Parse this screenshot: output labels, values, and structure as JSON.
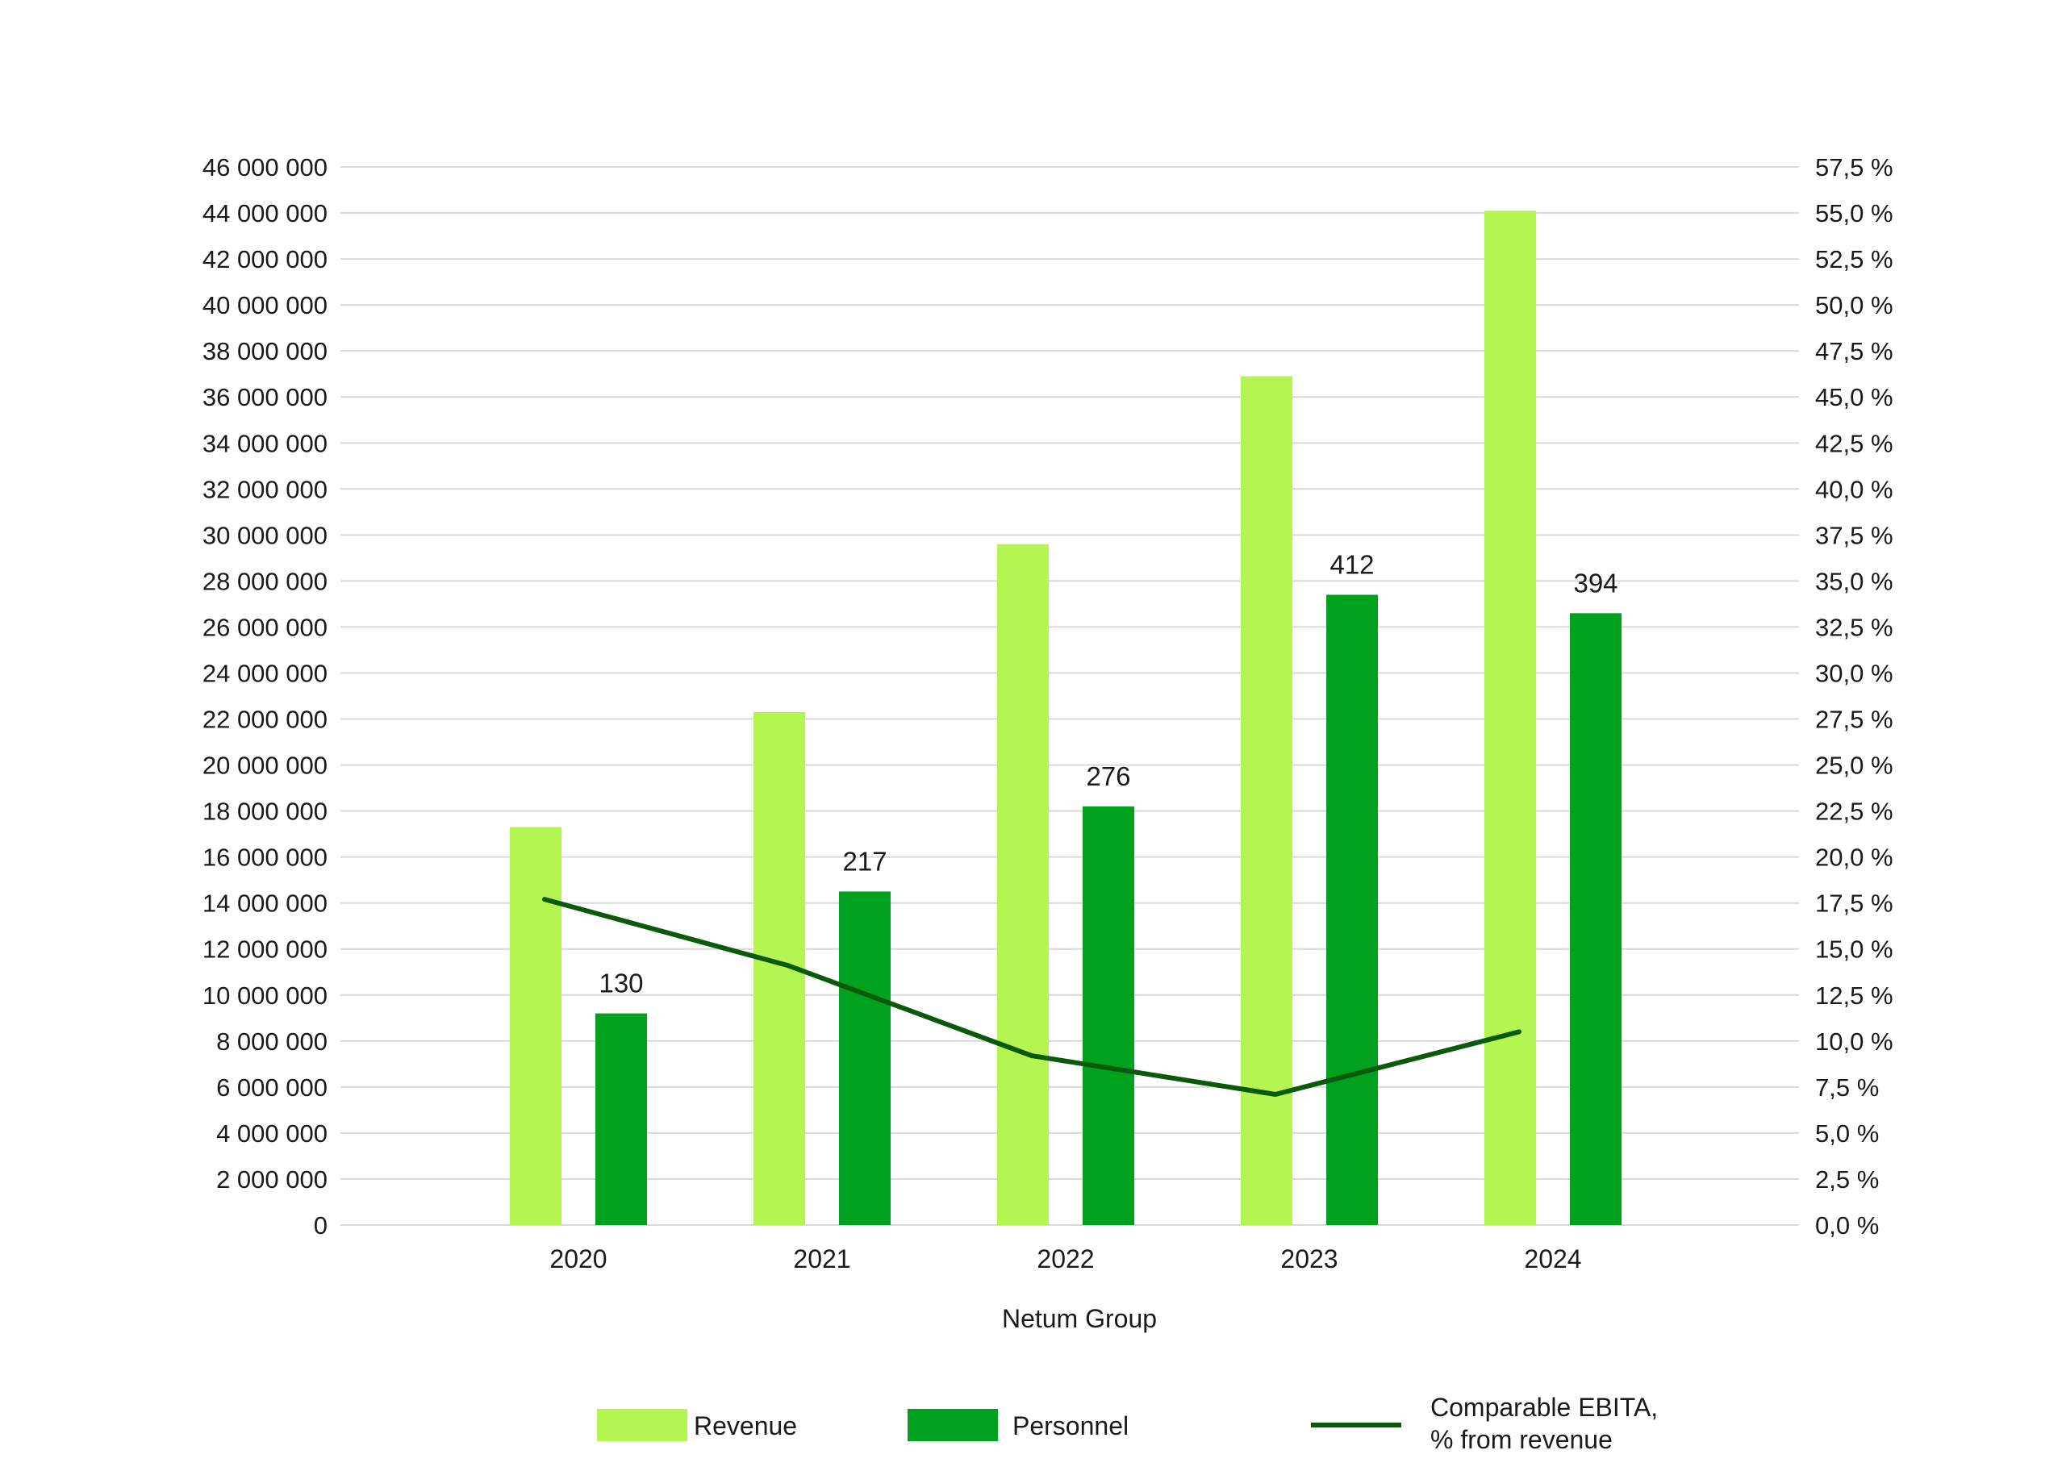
{
  "chart_data": {
    "type": "bar",
    "title": "",
    "xlabel": "Netum Group",
    "categories": [
      "2020",
      "2021",
      "2022",
      "2023",
      "2024"
    ],
    "series": [
      {
        "name": "Revenue",
        "axis": "left",
        "color": "#b5f551",
        "values": [
          17300000,
          22300000,
          29600000,
          36900000,
          44100000
        ]
      },
      {
        "name": "Personnel",
        "axis": "left",
        "color": "#00a11f",
        "values": [
          9200000,
          14500000,
          18200000,
          27400000,
          26600000
        ],
        "data_labels": [
          "130",
          "217",
          "276",
          "412",
          "394"
        ]
      },
      {
        "name": "Comparable EBITA, % from revenue",
        "type": "line",
        "axis": "right",
        "color": "#0a5a0a",
        "values": [
          17.7,
          14.1,
          9.2,
          7.1,
          10.5
        ]
      }
    ],
    "y_left": {
      "ylim": [
        0,
        46000000
      ],
      "ticks": [
        0,
        2000000,
        4000000,
        6000000,
        8000000,
        10000000,
        12000000,
        14000000,
        16000000,
        18000000,
        20000000,
        22000000,
        24000000,
        26000000,
        28000000,
        30000000,
        32000000,
        34000000,
        36000000,
        38000000,
        40000000,
        42000000,
        44000000,
        46000000
      ],
      "tick_labels": [
        "0",
        "2 000 000",
        "4 000 000",
        "6 000 000",
        "8 000 000",
        "10 000 000",
        "12 000 000",
        "14 000 000",
        "16 000 000",
        "18 000 000",
        "20 000 000",
        "22 000 000",
        "24 000 000",
        "26 000 000",
        "28 000 000",
        "30 000 000",
        "32 000 000",
        "34 000 000",
        "36 000 000",
        "38 000 000",
        "40 000 000",
        "42 000 000",
        "44 000 000",
        "46 000 000"
      ]
    },
    "y_right": {
      "ylim": [
        0,
        57.5
      ],
      "tick_labels": [
        "0,0 %",
        "2,5 %",
        "5,0 %",
        "7,5 %",
        "10,0 %",
        "12,5 %",
        "15,0 %",
        "17,5 %",
        "20,0 %",
        "22,5 %",
        "25,0 %",
        "27,5 %",
        "30,0 %",
        "32,5 %",
        "35,0 %",
        "37,5 %",
        "40,0 %",
        "42,5 %",
        "45,0 %",
        "47,5 %",
        "50,0 %",
        "52,5 %",
        "55,0 %",
        "57,5 %"
      ]
    },
    "grid": true,
    "legend": {
      "position": "bottom",
      "items": [
        {
          "label": "Revenue",
          "kind": "box",
          "color": "#b5f551"
        },
        {
          "label": "Personnel",
          "kind": "box",
          "color": "#00a11f"
        },
        {
          "label_lines": [
            "Comparable EBITA,",
            "% from revenue"
          ],
          "kind": "line",
          "color": "#0a5a0a"
        }
      ]
    }
  }
}
